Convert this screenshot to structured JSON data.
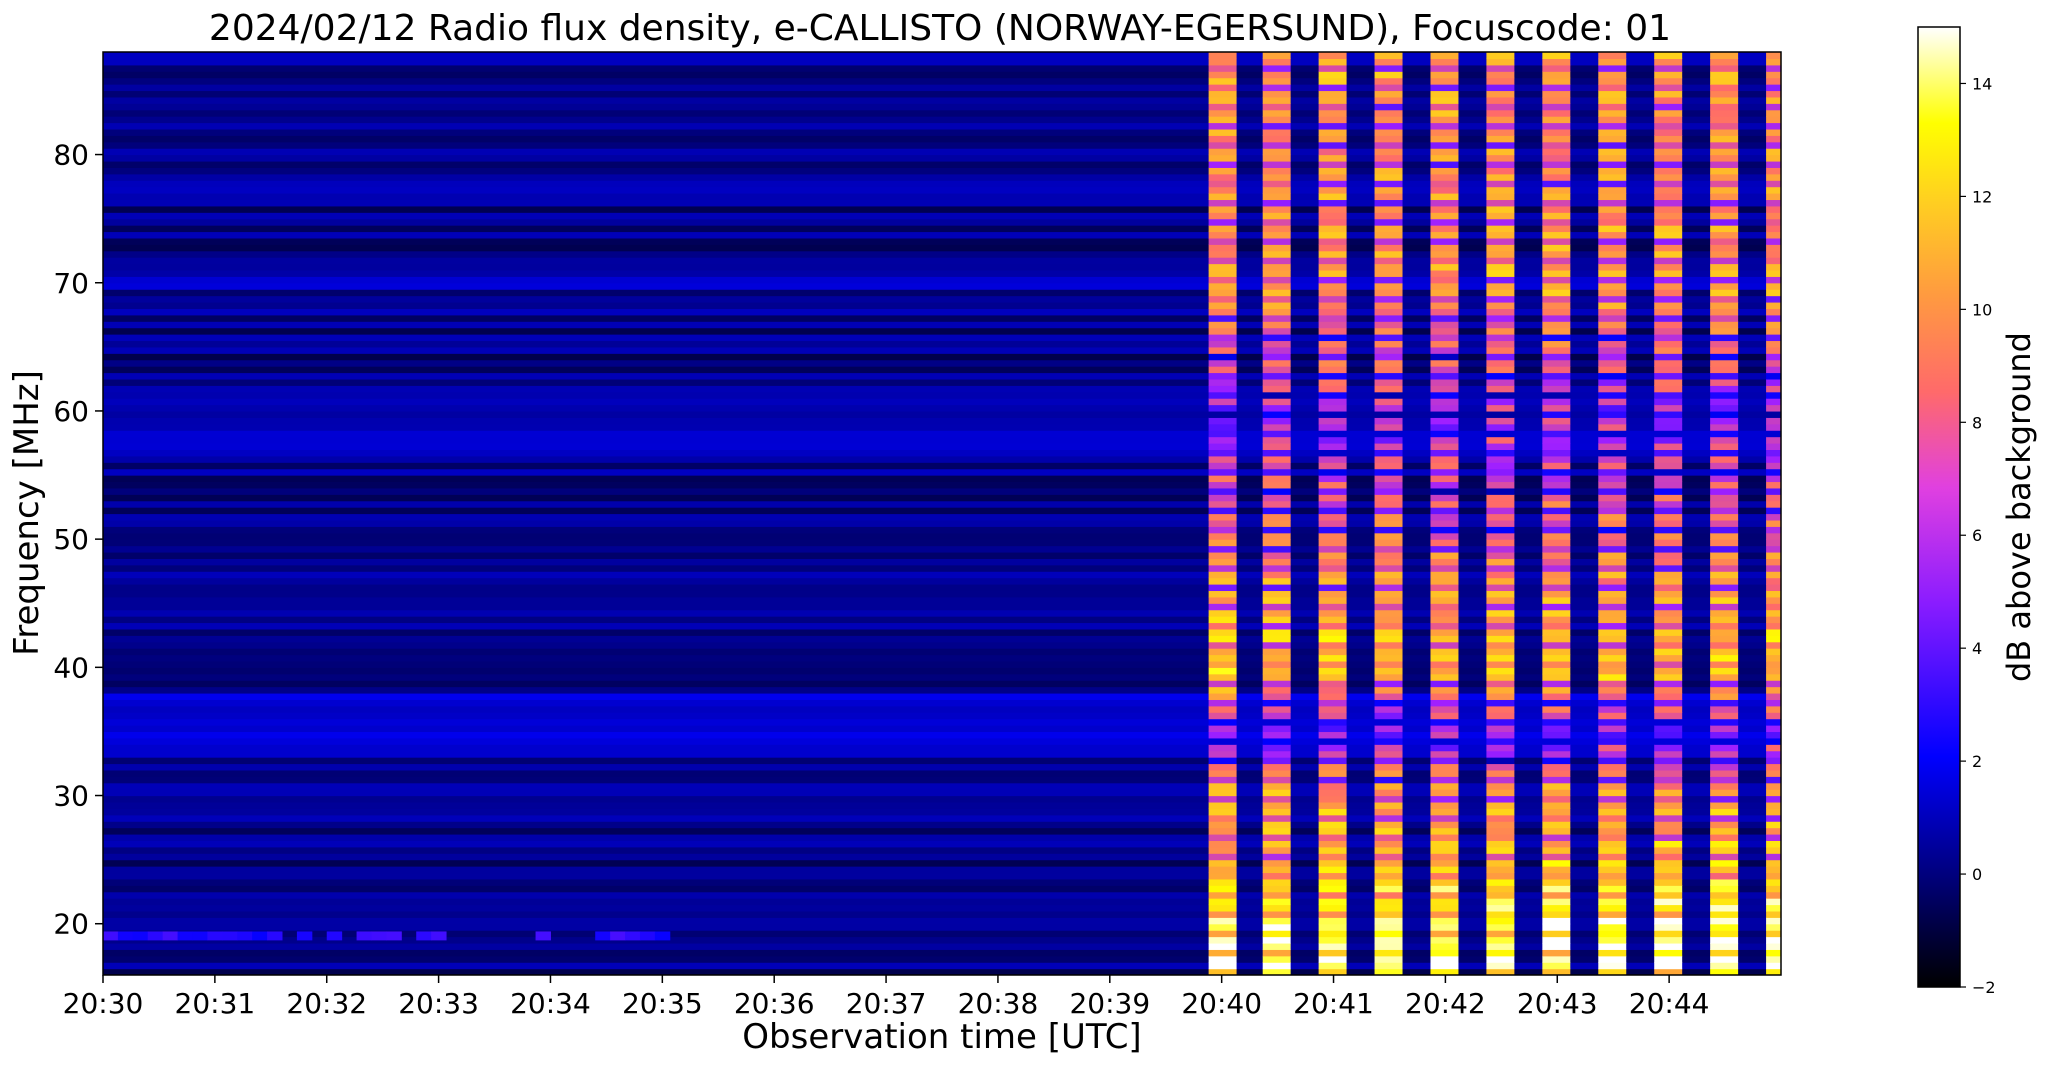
{
  "chart_data": {
    "type": "heatmap",
    "title": "2024/02/12  Radio flux density, e-CALLISTO (NORWAY-EGERSUND), Focuscode: 01",
    "xlabel": "Observation time [UTC]",
    "ylabel": "Frequency [MHz]",
    "xlim": [
      "20:30",
      "20:45"
    ],
    "x_ticks": [
      "20:30",
      "20:31",
      "20:32",
      "20:33",
      "20:34",
      "20:35",
      "20:36",
      "20:37",
      "20:38",
      "20:39",
      "20:40",
      "20:41",
      "20:42",
      "20:43",
      "20:44"
    ],
    "ylim": [
      16,
      88
    ],
    "y_ticks": [
      20,
      30,
      40,
      50,
      60,
      70,
      80
    ],
    "colorbar": {
      "label": "dB above background",
      "range": [
        -2,
        15
      ],
      "ticks": [
        -2,
        0,
        2,
        4,
        6,
        8,
        10,
        12,
        14
      ],
      "colormap": "gnuplot2",
      "stops": [
        "#000000",
        "#0000ff",
        "#a020ff",
        "#ff6a6a",
        "#ffb030",
        "#ffff00",
        "#ffffff"
      ]
    },
    "background_level_db": -0.5,
    "interference_bands_mhz": [
      {
        "from": 18.7,
        "to": 19.4,
        "until": "20:35",
        "level_db": 1.5
      },
      {
        "from": 33.0,
        "to": 38.0,
        "level_db": 0.4
      },
      {
        "from": 56.0,
        "to": 62.0,
        "level_db": 0.1
      },
      {
        "from": 69.5,
        "to": 70.3,
        "level_db": 0.6
      }
    ],
    "burst_onset": "20:39:53",
    "burst_pulses": [
      {
        "start": "20:39:53",
        "end": "20:40:08"
      },
      {
        "start": "20:40:22",
        "end": "20:40:37"
      },
      {
        "start": "20:40:52",
        "end": "20:41:07"
      },
      {
        "start": "20:41:22",
        "end": "20:41:37"
      },
      {
        "start": "20:41:52",
        "end": "20:42:07"
      },
      {
        "start": "20:42:22",
        "end": "20:42:37"
      },
      {
        "start": "20:42:52",
        "end": "20:43:07"
      },
      {
        "start": "20:43:22",
        "end": "20:43:37"
      },
      {
        "start": "20:43:52",
        "end": "20:44:07"
      },
      {
        "start": "20:44:22",
        "end": "20:44:37"
      },
      {
        "start": "20:44:52",
        "end": "20:45:00"
      }
    ],
    "burst_profile_db": [
      {
        "freq_mhz": 88,
        "level_db": 9
      },
      {
        "freq_mhz": 80,
        "level_db": 8
      },
      {
        "freq_mhz": 70,
        "level_db": 9
      },
      {
        "freq_mhz": 60,
        "level_db": 4
      },
      {
        "freq_mhz": 50,
        "level_db": 7
      },
      {
        "freq_mhz": 40,
        "level_db": 11
      },
      {
        "freq_mhz": 35,
        "level_db": 3
      },
      {
        "freq_mhz": 30,
        "level_db": 9
      },
      {
        "freq_mhz": 25,
        "level_db": 10
      },
      {
        "freq_mhz": 20,
        "level_db": 14
      },
      {
        "freq_mhz": 16,
        "level_db": 15
      }
    ]
  }
}
